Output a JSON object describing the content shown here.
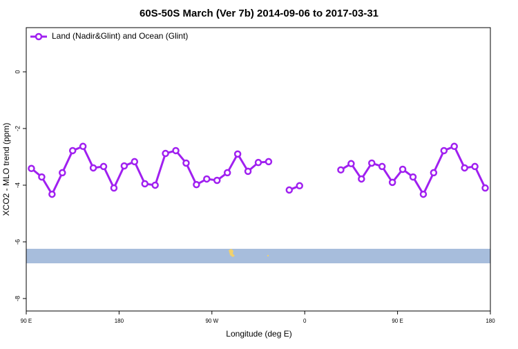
{
  "chart_data": {
    "type": "line",
    "title": "60S-50S March (Ver 7b)   2014-09-06 to 2017-03-31",
    "x_label": "Longitude (deg E)",
    "y_label": "XCO2 - MLO trend (ppm)",
    "x": [
      95,
      105,
      115,
      125,
      135,
      145,
      155,
      165,
      175,
      185,
      195,
      205,
      215,
      225,
      235,
      245,
      255,
      265,
      275,
      285,
      295,
      305,
      315,
      325,
      335,
      345,
      355,
      365,
      375,
      385,
      395,
      405,
      415,
      425,
      435,
      445,
      455,
      465,
      475,
      485,
      495,
      505,
      515,
      525,
      535
    ],
    "series": [
      {
        "name": "Land (Nadir&Glint) and Ocean (Glint)",
        "color": "#a020f0",
        "values": [
          -3.41,
          -3.71,
          -4.32,
          -3.56,
          -2.78,
          -2.63,
          -3.39,
          -3.34,
          -4.1,
          -3.32,
          -3.17,
          -3.95,
          -4.0,
          -2.88,
          -2.78,
          -3.22,
          -3.98,
          -3.78,
          -3.83,
          -3.56,
          -2.9,
          -3.51,
          -3.2,
          -3.17,
          null,
          -4.17,
          -4.02,
          null,
          null,
          null,
          -3.46,
          -3.24,
          -3.78,
          -3.22,
          -3.34,
          -3.9,
          -3.44,
          -3.71,
          -4.32,
          -3.56,
          -2.78,
          -2.63,
          -3.39,
          -3.34,
          -4.1
        ]
      }
    ],
    "xlim": [
      90,
      540
    ],
    "xticks": [
      {
        "value": 90,
        "label": "90 E"
      },
      180,
      {
        "value": 270,
        "label": "90 W"
      },
      {
        "value": 360,
        "label": "0"
      },
      {
        "value": 450,
        "label": "90 E"
      },
      {
        "value": 540,
        "label": "180"
      }
    ],
    "ylim": [
      -8.44,
      1.56
    ],
    "yticks": [
      0,
      -2,
      -4,
      -6,
      -8
    ],
    "legend": "top-left"
  }
}
